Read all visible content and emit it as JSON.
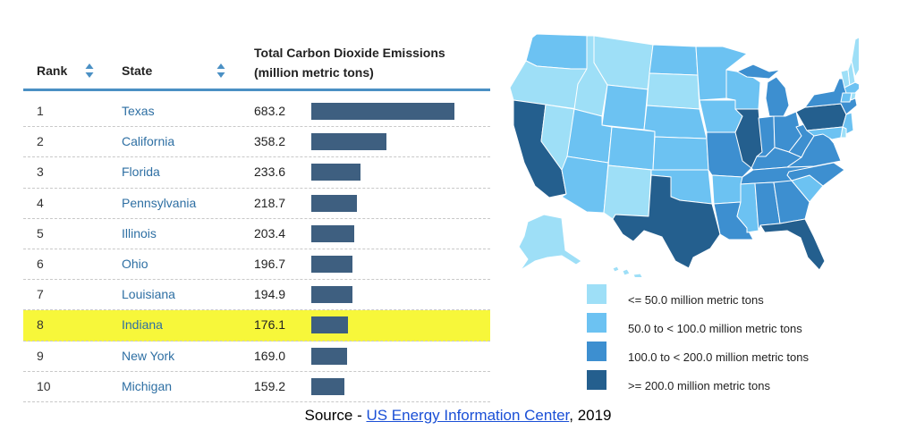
{
  "table": {
    "headers": {
      "rank": "Rank",
      "state": "State",
      "emissions_line1": "Total Carbon Dioxide Emissions",
      "emissions_line2": "(million metric tons)"
    },
    "highlight_rank": 8
  },
  "chart_data": {
    "type": "bar",
    "orientation": "horizontal",
    "title": "Total Carbon Dioxide Emissions (million metric tons)",
    "categories": [
      "Texas",
      "California",
      "Florida",
      "Pennsylvania",
      "Illinois",
      "Ohio",
      "Louisiana",
      "Indiana",
      "New York",
      "Michigan"
    ],
    "ranks": [
      "1",
      "2",
      "3",
      "4",
      "5",
      "6",
      "7",
      "8",
      "9",
      "10"
    ],
    "values": [
      683.2,
      358.2,
      233.6,
      218.7,
      203.4,
      196.7,
      194.9,
      176.1,
      169.0,
      159.2
    ],
    "value_labels": [
      "683.2",
      "358.2",
      "233.6",
      "218.7",
      "203.4",
      "196.7",
      "194.9",
      "176.1",
      "169.0",
      "159.2"
    ],
    "xlim": [
      0,
      683.2
    ],
    "bar_color": "#3e5f80",
    "highlight_color": "#f7f73a"
  },
  "map": {
    "colors": {
      "c1": "#9edff7",
      "c2": "#6cc2f2",
      "c3": "#3d8fd0",
      "c4": "#245f8e"
    },
    "legend": [
      {
        "label": "<= 50.0 million metric tons",
        "color": "#9edff7"
      },
      {
        "label": "50.0 to < 100.0 million metric tons",
        "color": "#6cc2f2"
      },
      {
        "label": "100.0 to < 200.0 million metric tons",
        "color": "#3d8fd0"
      },
      {
        "label": ">= 200.0 million metric tons",
        "color": "#245f8e"
      }
    ]
  },
  "source": {
    "prefix": "Source - ",
    "link_text": "US Energy Information Center",
    "suffix": ", 2019"
  }
}
